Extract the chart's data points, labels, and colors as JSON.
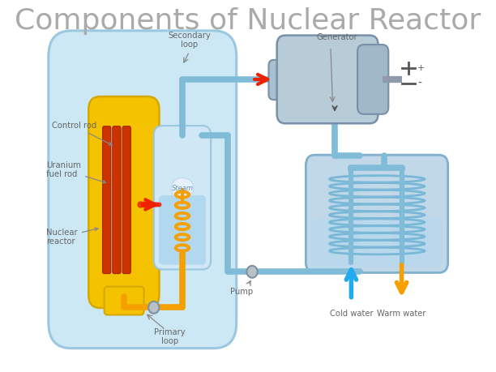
{
  "title": "Components of Nuclear Reactor",
  "title_fontsize": 26,
  "title_color": "#aaaaaa",
  "bg_color": "#ffffff",
  "labels": {
    "control_rod": "Control rod",
    "uranium_fuel_rod": "Uranium\nfuel rod",
    "nuclear_reactor": "Nuclear\nreactor",
    "secondary_loop": "Secondary\nloop",
    "generator": "Generator",
    "steam": "Steam",
    "pump": "Pump",
    "primary_loop": "Primary\nloop",
    "cold_water": "Cold water",
    "warm_water": "Warm water"
  },
  "colors": {
    "reactor_vessel_fill": "#cce8f5",
    "reactor_vessel_edge": "#9bc8e0",
    "fuel_assembly_fill": "#f5c200",
    "fuel_assembly_edge": "#d4a800",
    "control_rod_fill": "#c8c8c8",
    "control_rod_edge": "#a0a0a0",
    "fuel_rod_fill": "#cc3300",
    "fuel_rod_edge": "#aa2200",
    "steam_vessel_fill": "#d0e8f5",
    "steam_vessel_edge": "#9bc8e0",
    "coil_color": "#f5a000",
    "pipe_blue": "#80bcd8",
    "pipe_blue_edge": "#60a0c0",
    "generator_body": "#b8ccd8",
    "generator_edge": "#7890a8",
    "generator_cap": "#a0b8c8",
    "condenser_fill": "#c0d8e8",
    "condenser_edge": "#80b0cc",
    "condenser_coil": "#7ab8d8",
    "red_arrow": "#ee2200",
    "cold_arrow": "#22aaee",
    "warm_arrow": "#f5a000",
    "text_color": "#606060",
    "label_color": "#666666",
    "arrow_color": "#888888"
  }
}
